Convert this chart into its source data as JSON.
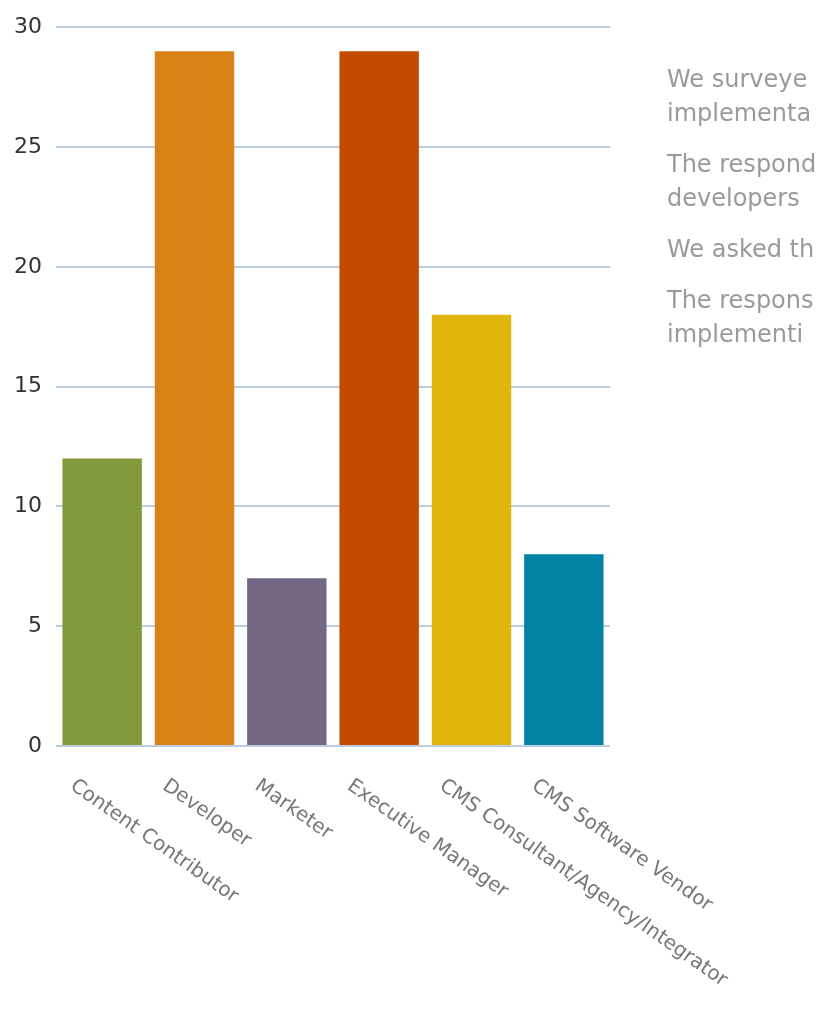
{
  "chart_data": {
    "type": "bar",
    "categories": [
      "Content Contributor",
      "Developer",
      "Marketer",
      "Executive Manager",
      "CMS Consultant/Agency/Integrator",
      "CMS Software Vendor"
    ],
    "values": [
      12,
      29,
      7,
      29,
      18,
      8
    ],
    "colors": [
      "#82993b",
      "#d98218",
      "#746784",
      "#c44a00",
      "#e2b50b",
      "#0282a5"
    ],
    "ylim": [
      0,
      30
    ],
    "yticks": [
      0,
      5,
      10,
      15,
      20,
      25,
      30
    ],
    "grid": "y",
    "annotations": [
      "We surveye",
      "implementa",
      "The respond",
      "developers",
      "We asked th",
      "The respons",
      "implementi"
    ]
  }
}
